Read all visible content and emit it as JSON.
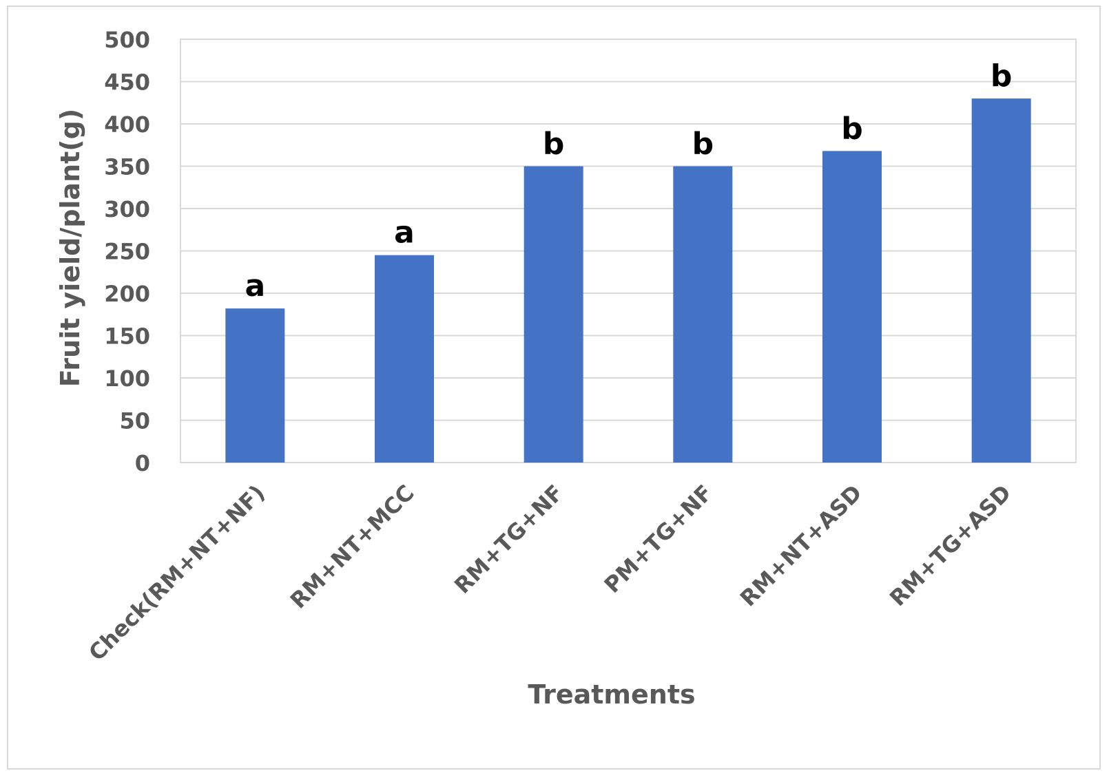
{
  "chart_data": {
    "type": "bar",
    "categories": [
      "Check(RM+NT+NF)",
      "RM+NT+MCC",
      "RM+TG+NF",
      "PM+TG+NF",
      "RM+NT+ASD",
      "RM+TG+ASD"
    ],
    "values": [
      182,
      245,
      350,
      350,
      368,
      430
    ],
    "data_labels": [
      "a",
      "a",
      "b",
      "b",
      "b",
      "b"
    ],
    "xlabel": "Treatments",
    "ylabel": "Fruit yield/plant(g)",
    "ylim": [
      0,
      500
    ],
    "yticks": [
      "0",
      "50",
      "100",
      "150",
      "200",
      "250",
      "300",
      "350",
      "400",
      "450",
      "500"
    ],
    "grid": true,
    "bar_color": "#4472c4",
    "grid_color": "#d9d9d9",
    "text_color": "#595959"
  }
}
